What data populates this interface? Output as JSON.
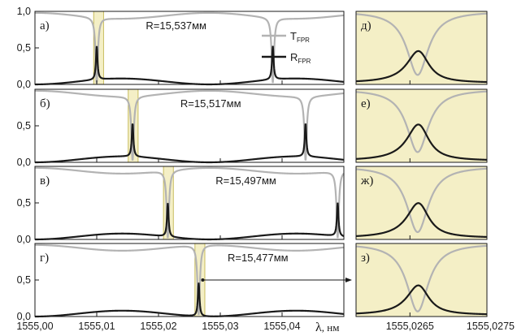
{
  "chart_data": {
    "type": "line",
    "legend": {
      "placement": "top-right of first panel",
      "entries": [
        {
          "main": "T",
          "sub": "FPR",
          "color": "#b3b3b3"
        },
        {
          "main": "R",
          "sub": "FPR",
          "color": "#1a1a1a"
        }
      ]
    },
    "colors": {
      "transmission": "#b3b3b3",
      "reflection": "#1a1a1a",
      "highlight_fill": "#f4efc6",
      "highlight_stroke": "#bcae3c"
    },
    "left_axis": {
      "xlim": [
        1555.0,
        1555.05
      ],
      "ylim": [
        0,
        1.0
      ],
      "x_ticks": [
        1555.0,
        1555.01,
        1555.02,
        1555.03,
        1555.04
      ],
      "x_tick_labels": [
        "1555,00",
        "1555,01",
        "1555,02",
        "1555,03",
        "1555,04"
      ],
      "y_ticks": [
        0,
        0.5,
        1.0
      ],
      "y_tick_labels": [
        "0,0",
        "0,5",
        "1,0"
      ],
      "xlabel_symbol": "λ",
      "xlabel_unit": ", нм"
    },
    "right_axis": {
      "xlim": [
        1555.0258,
        1555.0275
      ],
      "x_ticks": [
        1555.0265,
        1555.0275
      ],
      "x_tick_labels": [
        "1555,0265",
        "1555,0275"
      ]
    },
    "panels": [
      {
        "label": "а)",
        "R_label": "R=15,537мм",
        "resonances": [
          1555.01,
          1555.0385
        ],
        "highlight": [
          1555.0095,
          1555.0111
        ],
        "peak_R": 0.46
      },
      {
        "label": "б)",
        "R_label": "R=15,517мм",
        "resonances": [
          1555.0158,
          1555.0438
        ],
        "highlight": [
          1555.0151,
          1555.0167
        ],
        "peak_R": 0.46
      },
      {
        "label": "в)",
        "R_label": "R=15,497мм",
        "resonances": [
          1555.0215,
          1555.049
        ],
        "highlight": [
          1555.0208,
          1555.0224
        ],
        "peak_R": 0.46
      },
      {
        "label": "г)",
        "R_label": "R=15,477мм",
        "resonances": [
          1555.0265
        ],
        "highlight": [
          1555.0259,
          1555.0275
        ],
        "peak_R": 0.46
      }
    ],
    "zoom_panels": [
      {
        "label": "д)",
        "dip_T": 0.13,
        "peak_R": 0.43
      },
      {
        "label": "е)",
        "dip_T": 0.14,
        "peak_R": 0.49
      },
      {
        "label": "ж)",
        "dip_T": 0.1,
        "peak_R": 0.47
      },
      {
        "label": "з)",
        "dip_T": 0.07,
        "peak_R": 0.4
      }
    ],
    "baseline_R_max": 0.08,
    "baseline_T_min": 0.92
  }
}
